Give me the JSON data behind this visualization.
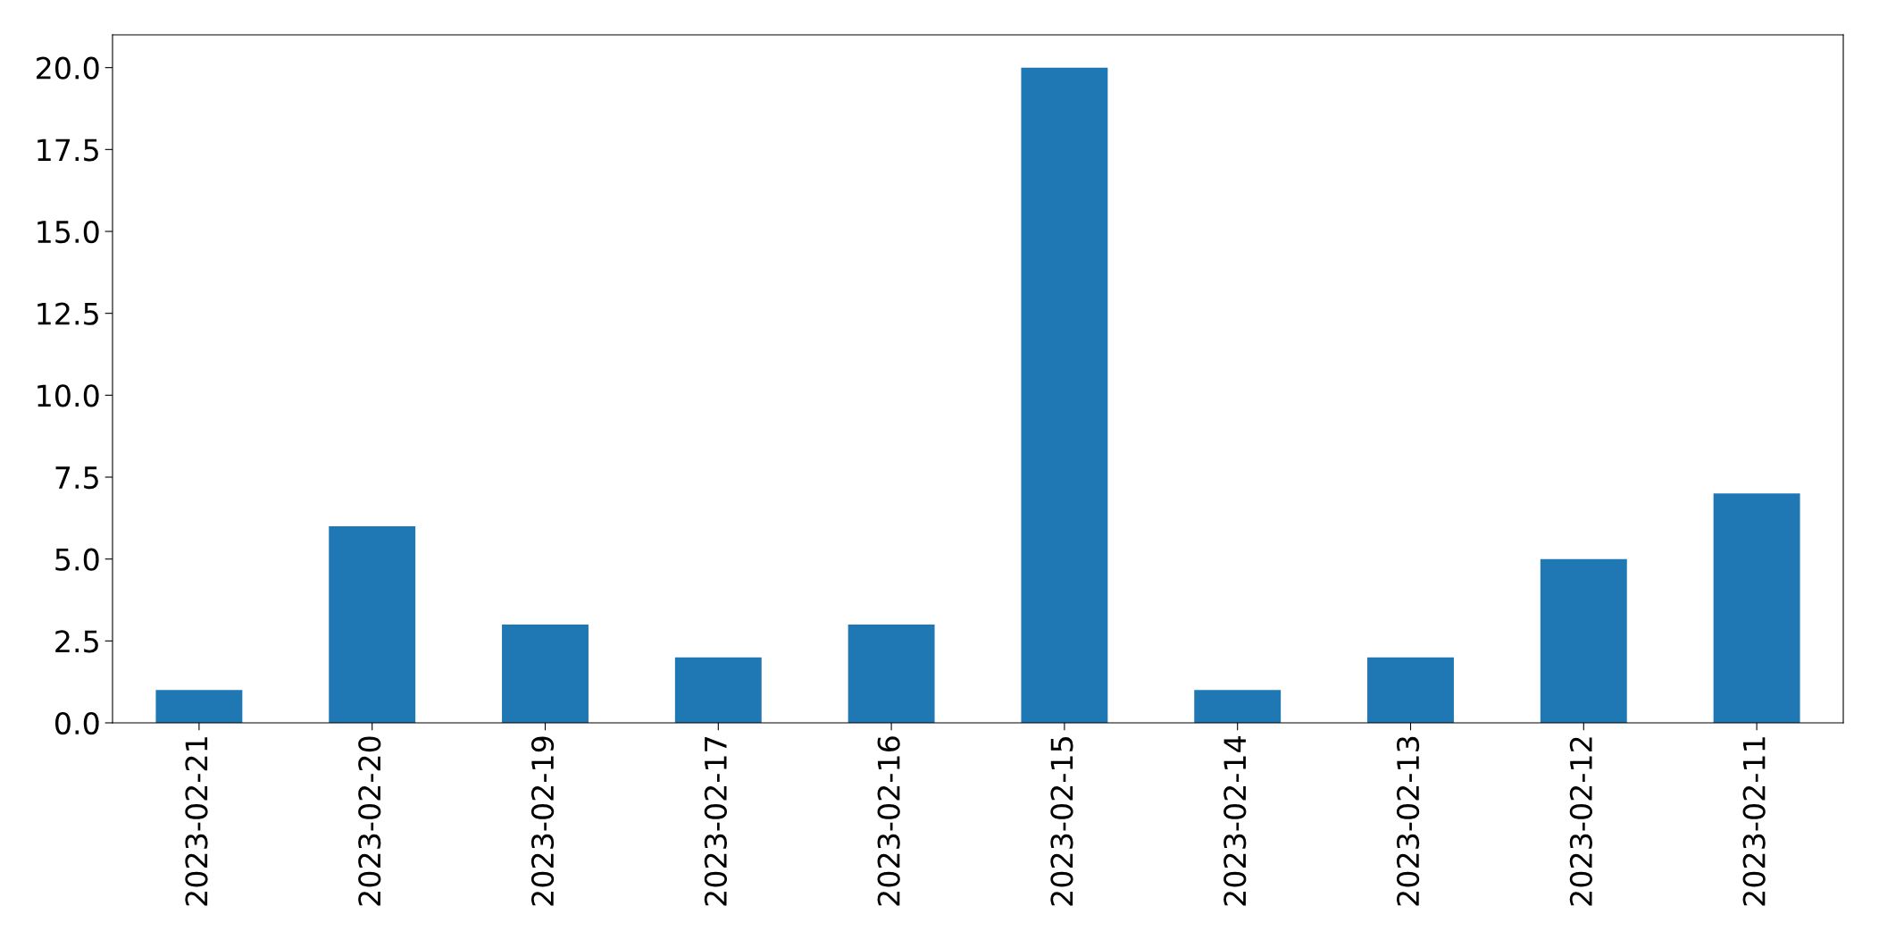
{
  "chart_data": {
    "type": "bar",
    "categories": [
      "2023-02-21",
      "2023-02-20",
      "2023-02-19",
      "2023-02-17",
      "2023-02-16",
      "2023-02-15",
      "2023-02-14",
      "2023-02-13",
      "2023-02-12",
      "2023-02-11"
    ],
    "values": [
      1,
      6,
      3,
      2,
      3,
      20,
      1,
      2,
      5,
      7
    ],
    "color": "#1f77b4",
    "ylim": [
      0,
      21
    ],
    "yticks": [
      {
        "value": 0,
        "label": "0.0"
      },
      {
        "value": 2.5,
        "label": "2.5"
      },
      {
        "value": 5,
        "label": "5.0"
      },
      {
        "value": 7.5,
        "label": "7.5"
      },
      {
        "value": 10,
        "label": "10.0"
      },
      {
        "value": 12.5,
        "label": "12.5"
      },
      {
        "value": 15,
        "label": "15.0"
      },
      {
        "value": 17.5,
        "label": "17.5"
      },
      {
        "value": 20,
        "label": "20.0"
      }
    ],
    "grid": false,
    "legend": false
  }
}
